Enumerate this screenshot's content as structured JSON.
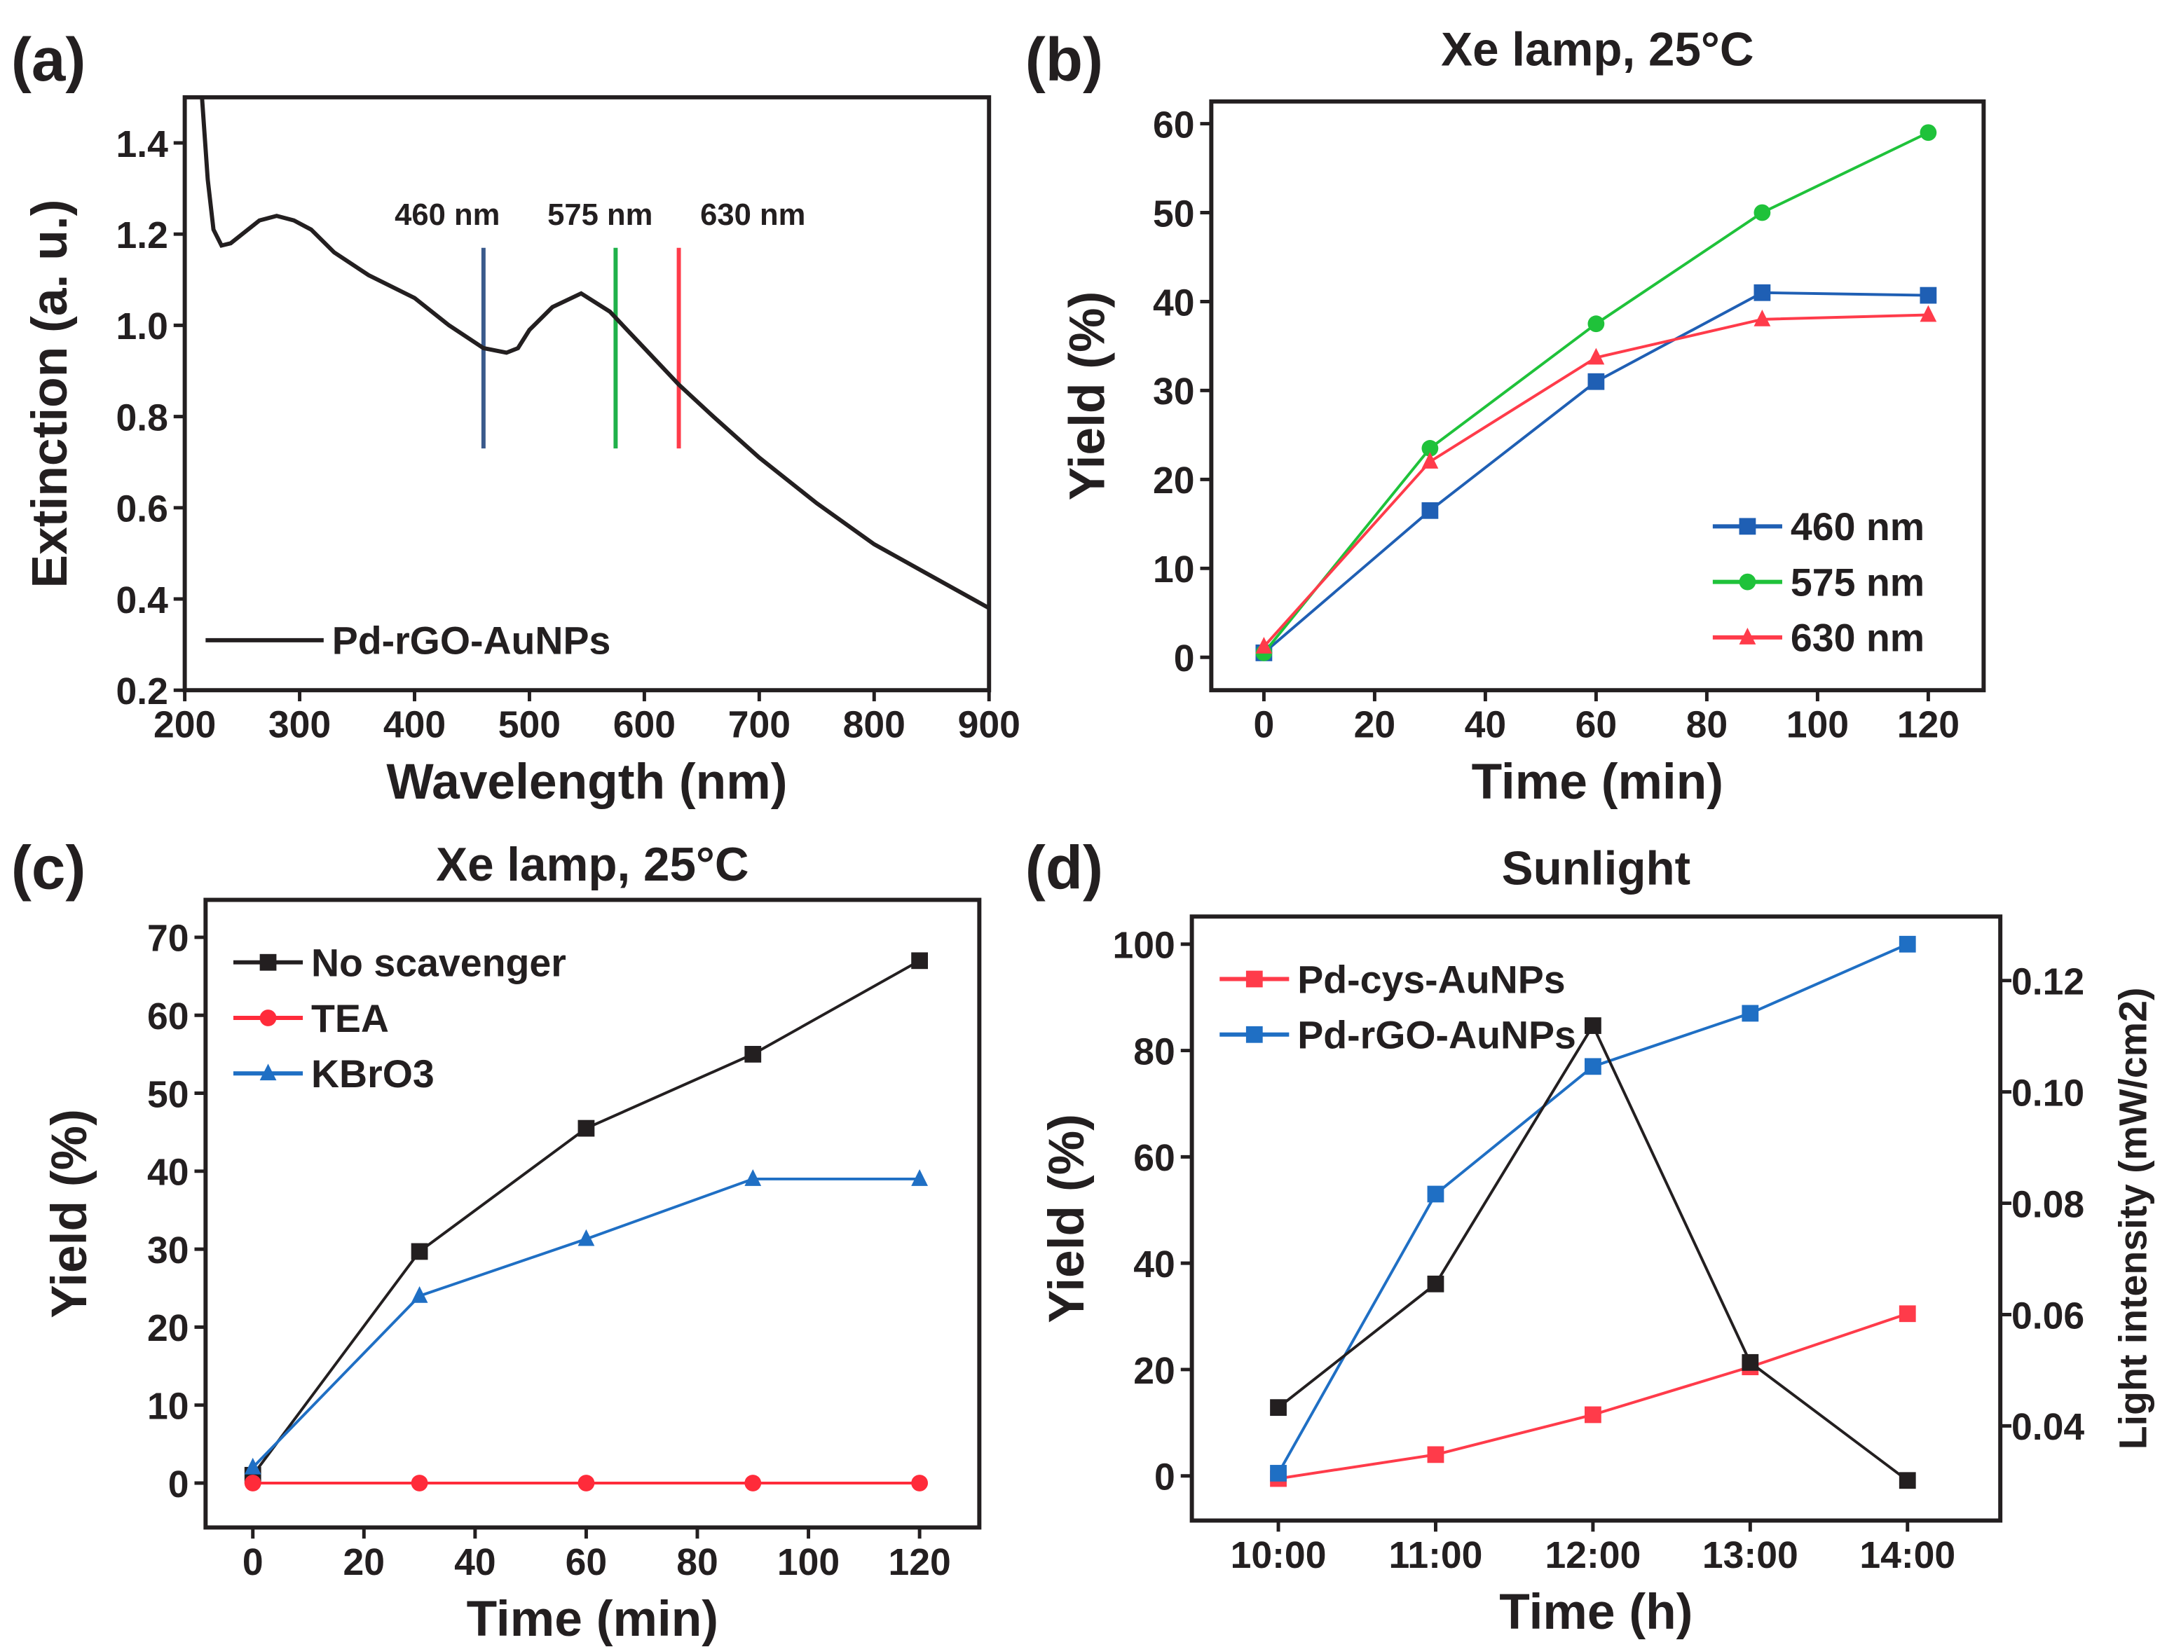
{
  "chart_data": [
    {
      "panel": "(a)",
      "type": "line",
      "title": "",
      "xlabel": "Wavelength (nm)",
      "ylabel": "Extinction (a. u.)",
      "xlim": [
        200,
        900
      ],
      "ylim": [
        0.2,
        1.5
      ],
      "xticks": [
        200,
        300,
        400,
        500,
        600,
        700,
        800,
        900
      ],
      "yticks": [
        0.2,
        0.4,
        0.6,
        0.8,
        1.0,
        1.2,
        1.4
      ],
      "ytick_labels": [
        "0.2",
        "0.4",
        "0.6",
        "0.8",
        "1.0",
        "1.2",
        "1.4"
      ],
      "series": [
        {
          "name": "Pd-rGO-AuNPs",
          "color": "#231f20",
          "marker": "none",
          "x": [
            215,
            220,
            225,
            232,
            240,
            250,
            265,
            280,
            295,
            310,
            330,
            360,
            400,
            430,
            460,
            480,
            490,
            500,
            520,
            545,
            570,
            600,
            630,
            660,
            700,
            750,
            800,
            850,
            900
          ],
          "y": [
            1.5,
            1.32,
            1.21,
            1.175,
            1.18,
            1.2,
            1.23,
            1.24,
            1.23,
            1.21,
            1.16,
            1.11,
            1.06,
            1.0,
            0.95,
            0.94,
            0.95,
            0.99,
            1.04,
            1.07,
            1.03,
            0.95,
            0.87,
            0.8,
            0.71,
            0.61,
            0.52,
            0.45,
            0.38
          ]
        }
      ],
      "annotations": [
        {
          "text": "460 nm",
          "x": 460,
          "color": "#3a5a8c"
        },
        {
          "text": "575 nm",
          "x": 575,
          "color": "#1fb14a"
        },
        {
          "text": "630 nm",
          "x": 630,
          "color": "#ff3b4a"
        }
      ],
      "vline_range": [
        0.73,
        1.17
      ],
      "legend": "bottom-left"
    },
    {
      "panel": "(b)",
      "type": "line",
      "title": "Xe lamp, 25°C",
      "xlabel": "Time (min)",
      "ylabel": "Yield (%)",
      "xlim": [
        -9.5,
        130
      ],
      "ylim": [
        -3.7,
        62.5
      ],
      "xticks": [
        0,
        20,
        40,
        60,
        80,
        100,
        120
      ],
      "yticks": [
        0,
        10,
        20,
        30,
        40,
        50,
        60
      ],
      "series": [
        {
          "name": "460 nm",
          "color": "#1f5fb4",
          "marker": "square",
          "x": [
            0,
            30,
            60,
            90,
            120
          ],
          "y": [
            0.5,
            16.5,
            31,
            41,
            40.7
          ]
        },
        {
          "name": "575 nm",
          "color": "#1fc23a",
          "marker": "circle",
          "x": [
            0,
            30,
            60,
            90,
            120
          ],
          "y": [
            0.5,
            23.5,
            37.5,
            50,
            59
          ]
        },
        {
          "name": "630 nm",
          "color": "#ff3b4a",
          "marker": "triangle",
          "x": [
            0,
            30,
            60,
            90,
            120
          ],
          "y": [
            1.2,
            22,
            33.7,
            38,
            38.5
          ]
        }
      ],
      "legend": "bottom-right"
    },
    {
      "panel": "(c)",
      "type": "line",
      "title": "Xe lamp, 25°C",
      "xlabel": "Time (min)",
      "ylabel": "Yield (%)",
      "xlim": [
        -8.5,
        130.75
      ],
      "ylim": [
        -5.7,
        74.8
      ],
      "xticks": [
        0,
        20,
        40,
        60,
        80,
        100,
        120
      ],
      "yticks": [
        0,
        10,
        20,
        30,
        40,
        50,
        60,
        70
      ],
      "series": [
        {
          "name": "No scavenger",
          "color": "#231f20",
          "marker": "square",
          "x": [
            0,
            30,
            60,
            90,
            120
          ],
          "y": [
            1,
            29.7,
            45.5,
            55,
            67
          ]
        },
        {
          "name": "TEA",
          "color": "#ff2b3a",
          "marker": "circle",
          "x": [
            0,
            30,
            60,
            90,
            120
          ],
          "y": [
            0,
            0,
            0,
            0,
            0
          ]
        },
        {
          "name": "KBrO3",
          "color": "#1f6fc4",
          "marker": "triangle",
          "x": [
            0,
            30,
            60,
            90,
            120
          ],
          "y": [
            2,
            24,
            31.3,
            39,
            39
          ]
        }
      ],
      "legend": "top-left"
    },
    {
      "panel": "(d)",
      "type": "line",
      "title": "Sunlight",
      "xlabel": "Time (h)",
      "ylabel": "Yield (%)",
      "y2label": "Light intensity (mW/cm2)",
      "categories": [
        "10:00",
        "11:00",
        "12:00",
        "13:00",
        "14:00"
      ],
      "xlim": [
        -0.55,
        4.59
      ],
      "ylim": [
        -8.4,
        105.2
      ],
      "y2lim": [
        0.023,
        0.1315
      ],
      "yticks": [
        0,
        20,
        40,
        60,
        80,
        100
      ],
      "y2ticks": [
        0.04,
        0.06,
        0.08,
        0.1,
        0.12
      ],
      "y2tick_labels": [
        "0.04",
        "0.06",
        "0.08",
        "0.10",
        "0.12"
      ],
      "series": [
        {
          "name": "Pd-cys-AuNPs",
          "color": "#ff3b4a",
          "marker": "square",
          "axis": "left",
          "x": [
            0,
            1,
            2,
            3,
            4
          ],
          "y": [
            -0.5,
            4,
            11.5,
            20.5,
            30.5
          ]
        },
        {
          "name": "Pd-rGO-AuNPs",
          "color": "#1f6fc4",
          "marker": "square",
          "axis": "left",
          "x": [
            0,
            1,
            2,
            3,
            4
          ],
          "y": [
            0.5,
            53,
            77,
            87,
            100
          ]
        },
        {
          "name": "Light intensity",
          "color": "#231f20",
          "marker": "square",
          "axis": "right",
          "legend": false,
          "x": [
            0,
            1,
            2,
            3,
            4
          ],
          "y": [
            0.0433,
            0.0655,
            0.1119,
            0.0514,
            0.0302
          ]
        }
      ],
      "legend": "top-left"
    }
  ]
}
